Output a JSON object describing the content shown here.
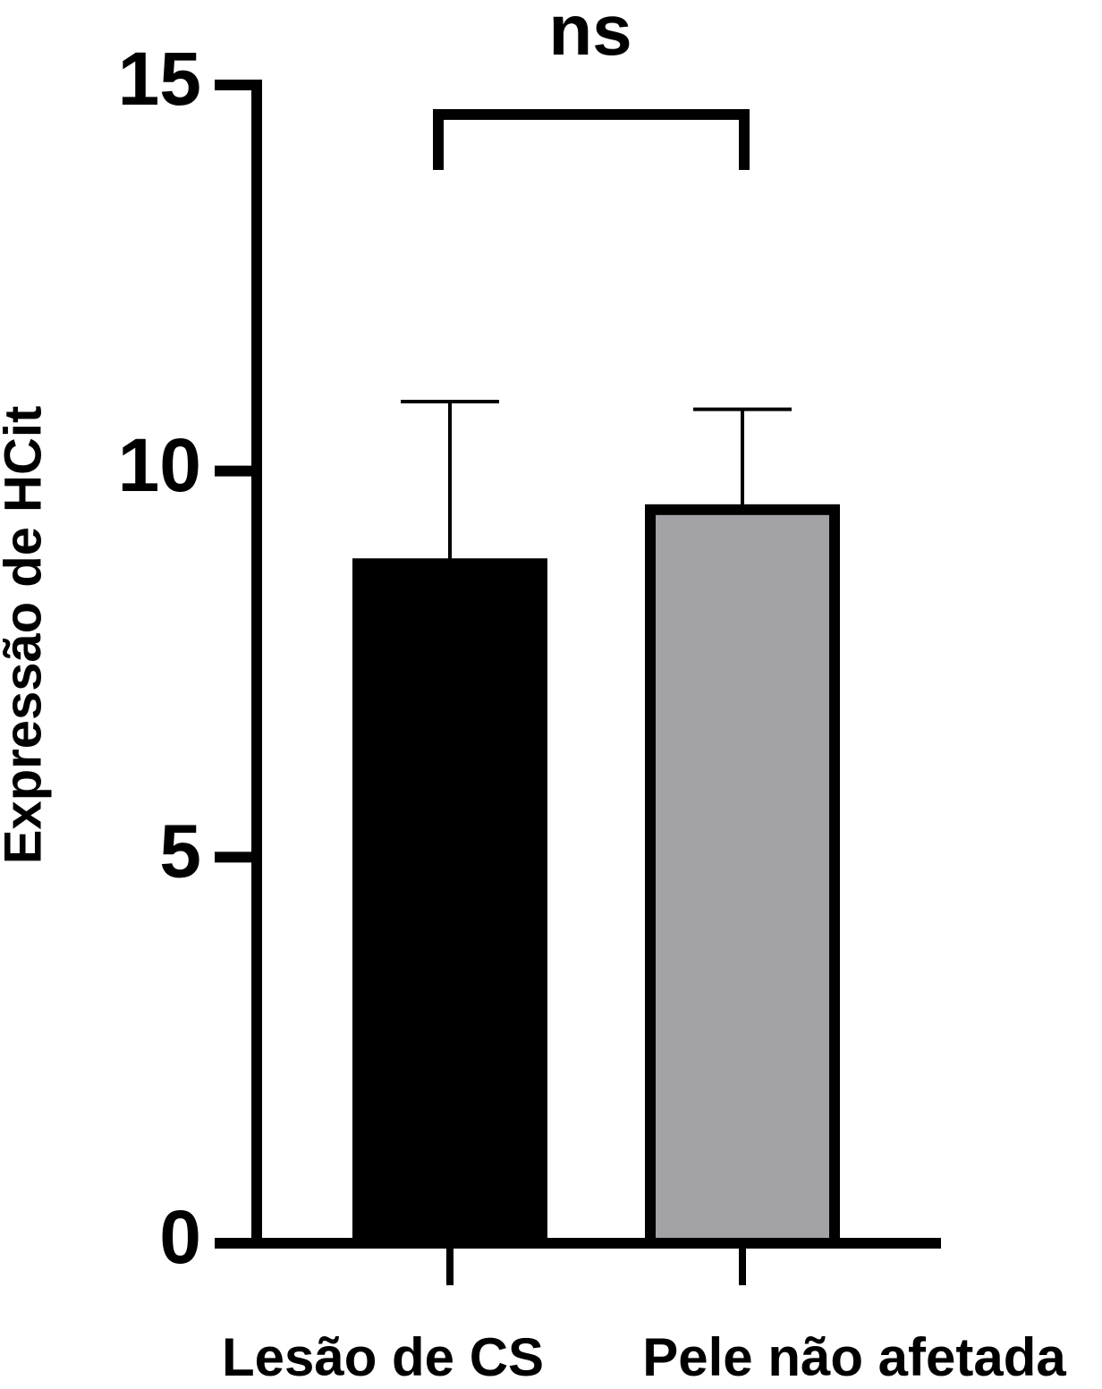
{
  "chart_data": {
    "type": "bar",
    "y_label": "Expressão de HCit",
    "annotation": "ns",
    "categories": [
      "Lesão de CS",
      "Pele não afetada"
    ],
    "values": [
      8.8,
      9.5
    ],
    "errors": [
      2.1,
      1.3
    ],
    "colors": [
      "#000000",
      "#a3a2a7"
    ],
    "ylim": [
      0,
      15
    ],
    "yticks": [
      0,
      5,
      10,
      15
    ]
  }
}
